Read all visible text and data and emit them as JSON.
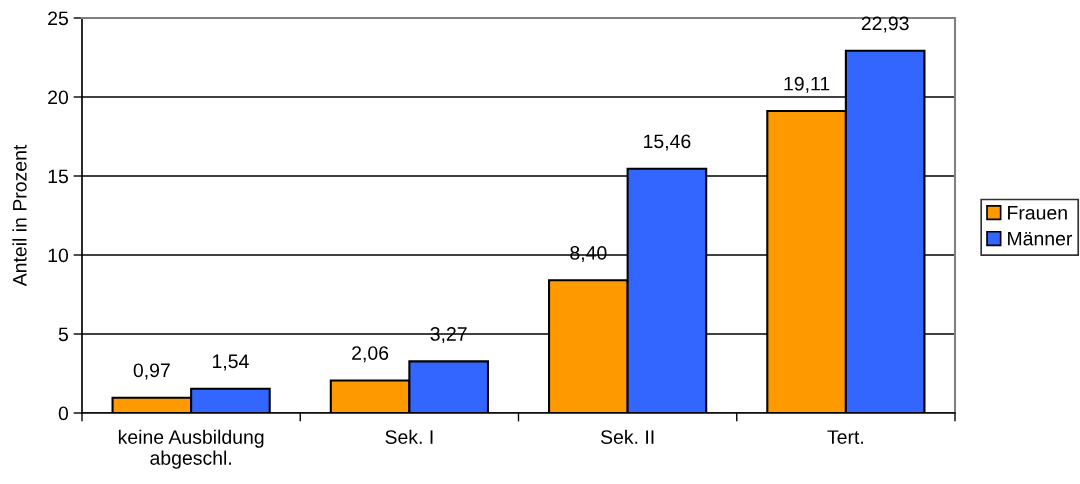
{
  "chart_data": {
    "type": "bar",
    "ylabel": "Anteil in Prozent",
    "categories": [
      "keine Ausbildung\nabgeschl.",
      "Sek. I",
      "Sek. II",
      "Tert."
    ],
    "series": [
      {
        "name": "Frauen",
        "color": "#ff9900",
        "values": [
          0.97,
          2.06,
          8.4,
          19.11
        ],
        "value_labels": [
          "0,97",
          "2,06",
          "8,40",
          "19,11"
        ]
      },
      {
        "name": "Männer",
        "color": "#3366ff",
        "values": [
          1.54,
          3.27,
          15.46,
          22.93
        ],
        "value_labels": [
          "1,54",
          "3,27",
          "15,46",
          "22,93"
        ]
      }
    ],
    "ylim": [
      0,
      25
    ],
    "yticks": [
      0,
      5,
      10,
      15,
      20,
      25
    ],
    "grid": "y",
    "legend": "right"
  }
}
